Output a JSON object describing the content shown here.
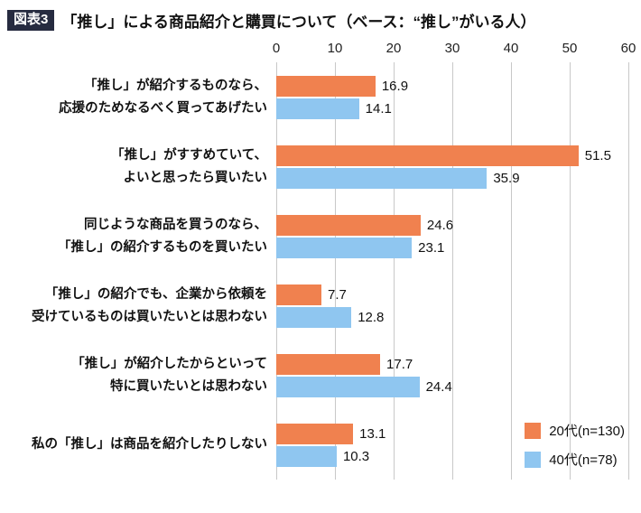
{
  "header": {
    "tag": "図表3",
    "title": "「推し」による商品紹介と購買について（ベース：“推し”がいる人）",
    "tag_bg": "#262b40"
  },
  "chart_data": {
    "type": "bar",
    "orientation": "horizontal",
    "title": "「推し」による商品紹介と購買について（ベース：“推し”がいる人）",
    "xlim": [
      0,
      60
    ],
    "xticks": [
      0,
      10,
      20,
      30,
      40,
      50,
      60
    ],
    "grid": true,
    "legend_position": "bottom-right",
    "categories": [
      [
        "「推し」が紹介するものなら、",
        "応援のためなるべく買ってあげたい"
      ],
      [
        "「推し」がすすめていて、",
        "よいと思ったら買いたい"
      ],
      [
        "同じような商品を買うのなら、",
        "「推し」の紹介するものを買いたい"
      ],
      [
        "「推し」の紹介でも、企業から依頼を",
        "受けているものは買いたいとは思わない"
      ],
      [
        "「推し」が紹介したからといって",
        "特に買いたいとは思わない"
      ],
      [
        "私の「推し」は商品を紹介したりしない"
      ]
    ],
    "series": [
      {
        "name": "20代(n=130)",
        "color": "#f0814f",
        "values": [
          16.9,
          51.5,
          24.6,
          7.7,
          17.7,
          13.1
        ]
      },
      {
        "name": "40代(n=78)",
        "color": "#8fc6f0",
        "values": [
          14.1,
          35.9,
          23.1,
          12.8,
          24.4,
          10.3
        ]
      }
    ]
  }
}
